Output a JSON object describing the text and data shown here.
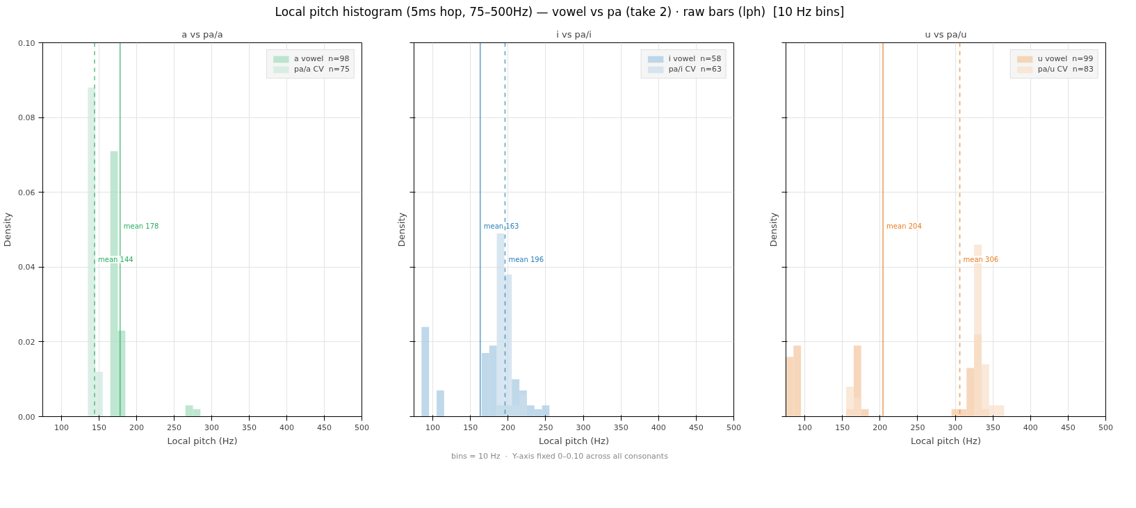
{
  "chart_data": [
    {
      "type": "histogram",
      "title": "a vs pa/a",
      "xlabel": "Local pitch (Hz)",
      "ylabel": "Density",
      "annotations": [
        "Local pitch histogram (5ms hop, 75–500Hz) — vowel vs pa (take 2) · raw bars (lph)  [10 Hz bins]"
      ],
      "bins": [
        135,
        145,
        155,
        165,
        175,
        185,
        195,
        205,
        215,
        225,
        235,
        245,
        255,
        265,
        275,
        285
      ],
      "series": [
        {
          "name": "a vowel  n=98",
          "color": "#a8dec0",
          "values": [
            0,
            0,
            0,
            0.071,
            0.023,
            0,
            0,
            0,
            0,
            0,
            0,
            0,
            0,
            0.003,
            0.002
          ]
        },
        {
          "name": "pa/a CV  n=75",
          "color": "#cfeadd",
          "values": [
            0.088,
            0.012,
            0,
            0,
            0,
            0,
            0,
            0,
            0,
            0,
            0,
            0,
            0,
            0,
            0
          ]
        }
      ],
      "xlim": [
        75,
        500
      ],
      "xticks": [
        100,
        150,
        200,
        250,
        300,
        350,
        400,
        450,
        500
      ],
      "ylim": [
        0,
        0.1
      ],
      "yticks": [
        {
          "value": 0,
          "label": "0.00"
        },
        {
          "value": 0.02,
          "label": "0.02"
        },
        {
          "value": 0.04,
          "label": "0.04"
        },
        {
          "value": 0.06,
          "label": "0.06"
        },
        {
          "value": 0.08,
          "label": "0.08"
        },
        {
          "value": 0.1,
          "label": "0.10"
        }
      ],
      "ref_lines": [
        {
          "axis": "x",
          "value": 178,
          "label": "mean 178",
          "color": "#27ae60",
          "line_style": "solid"
        },
        {
          "axis": "x",
          "value": 144,
          "label": "mean 144",
          "color": "#27ae60",
          "line_style": "dashed"
        }
      ],
      "grid": true,
      "legend": "top right"
    },
    {
      "type": "histogram",
      "title": "i vs pa/i",
      "xlabel": "Local pitch (Hz)",
      "ylabel": "Density",
      "annotations": [
        "bins = 10 Hz  ·  Y-axis fixed 0–0.10 across all consonants"
      ],
      "bins": [
        85,
        95,
        105,
        115,
        125,
        135,
        145,
        155,
        165,
        175,
        185,
        195,
        205,
        215,
        225,
        235,
        245,
        255
      ],
      "series": [
        {
          "name": "i vowel  n=58",
          "color": "#a9cbe3",
          "values": [
            0.024,
            0,
            0.007,
            0,
            0,
            0,
            0,
            0,
            0.017,
            0.019,
            0.003,
            0.003,
            0.01,
            0.007,
            0.003,
            0.002,
            0.003
          ]
        },
        {
          "name": "pa/i CV  n=63",
          "color": "#cadeeb",
          "values": [
            0,
            0,
            0,
            0,
            0,
            0,
            0,
            0,
            0,
            0,
            0.049,
            0.038,
            0.003,
            0.006,
            0,
            0,
            0
          ]
        }
      ],
      "xlim": [
        75,
        500
      ],
      "xticks": [
        100,
        150,
        200,
        250,
        300,
        350,
        400,
        450,
        500
      ],
      "ylim": [
        0,
        0.1
      ],
      "yticks": [
        {
          "value": 0,
          "label": null
        },
        {
          "value": 0.02,
          "label": null
        },
        {
          "value": 0.04,
          "label": null
        },
        {
          "value": 0.06,
          "label": null
        },
        {
          "value": 0.08,
          "label": null
        },
        {
          "value": 0.1,
          "label": null
        }
      ],
      "tick_labels": "x",
      "ref_lines": [
        {
          "axis": "x",
          "value": 163,
          "label": "mean 163",
          "color": "#2a80b9",
          "line_style": "solid"
        },
        {
          "axis": "x",
          "value": 196,
          "label": "mean 196",
          "color": "#2a80b9",
          "line_style": "dashed"
        }
      ],
      "grid": true,
      "legend": "top right"
    },
    {
      "type": "histogram",
      "title": "u vs pa/u",
      "xlabel": "Local pitch (Hz)",
      "ylabel": "Density",
      "bins": [
        75,
        85,
        95,
        105,
        115,
        125,
        135,
        145,
        155,
        165,
        175,
        185,
        195,
        205,
        215,
        225,
        235,
        245,
        255,
        265,
        275,
        285,
        295,
        305,
        315,
        325,
        335,
        345,
        355,
        365
      ],
      "series": [
        {
          "name": "u vowel  n=99",
          "color": "#f3caa4",
          "values": [
            0.016,
            0.019,
            0,
            0,
            0,
            0,
            0,
            0,
            0.002,
            0.019,
            0.002,
            0,
            0,
            0,
            0,
            0,
            0,
            0,
            0,
            0,
            0,
            0,
            0.002,
            0.002,
            0.013,
            0.022,
            0.002,
            0,
            0
          ]
        },
        {
          "name": "pa/u CV  n=83",
          "color": "#f8e0cb",
          "values": [
            0,
            0,
            0,
            0,
            0,
            0,
            0,
            0,
            0.008,
            0.005,
            null,
            0,
            0,
            0,
            0,
            0,
            0,
            0,
            0,
            0,
            0,
            0,
            null,
            0,
            0,
            0.046,
            0.014,
            0.003,
            0.003
          ]
        }
      ],
      "xlim": [
        75,
        500
      ],
      "xticks": [
        100,
        150,
        200,
        250,
        300,
        350,
        400,
        450,
        500
      ],
      "ylim": [
        0,
        0.1
      ],
      "yticks": [
        {
          "value": 0,
          "label": null
        },
        {
          "value": 0.02,
          "label": null
        },
        {
          "value": 0.04,
          "label": null
        },
        {
          "value": 0.06,
          "label": null
        },
        {
          "value": 0.08,
          "label": null
        },
        {
          "value": 0.1,
          "label": null
        }
      ],
      "tick_labels": "x",
      "ref_lines": [
        {
          "axis": "x",
          "value": 204,
          "label": "mean 204",
          "color": "#e67e22",
          "line_style": "solid"
        },
        {
          "axis": "x",
          "value": 306,
          "label": "mean 306",
          "color": "#e67e22",
          "line_style": "dashed"
        }
      ],
      "grid": true,
      "legend": "top right"
    }
  ]
}
